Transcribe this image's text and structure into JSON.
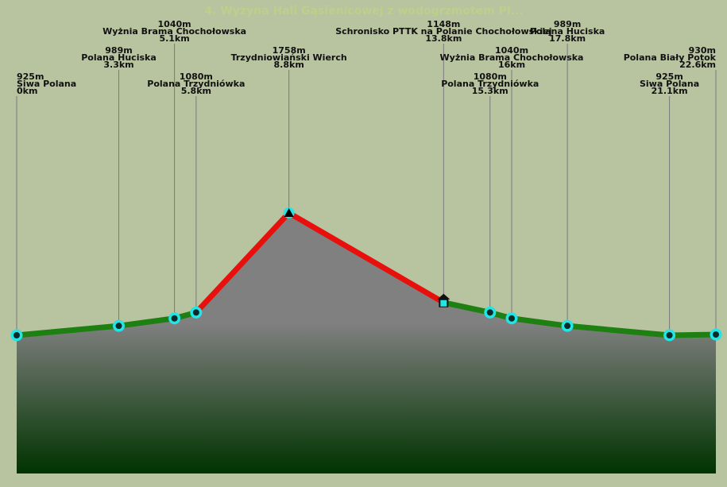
{
  "chart_data": {
    "type": "area",
    "title": "4. Wyżyna Hali Gąsienicowej z wodogrzmotem Pl...",
    "x_unit": "km",
    "y_unit": "m",
    "xlim": [
      0,
      22.6
    ],
    "points": [
      {
        "km": 0,
        "elev": 925,
        "name": "Siwa Polana",
        "km_label": "0km",
        "elev_label": "925m",
        "marker": "circle"
      },
      {
        "km": 3.3,
        "elev": 989,
        "name": "Polana Huciska",
        "km_label": "3.3km",
        "elev_label": "989m",
        "marker": "circle"
      },
      {
        "km": 5.1,
        "elev": 1040,
        "name": "Wyżnia Brama Chochołowska",
        "km_label": "5.1km",
        "elev_label": "1040m",
        "marker": "circle"
      },
      {
        "km": 5.8,
        "elev": 1080,
        "name": "Polana Trzydniówka",
        "km_label": "5.8km",
        "elev_label": "1080m",
        "marker": "circle"
      },
      {
        "km": 8.8,
        "elev": 1758,
        "name": "Trzydniowiański Wierch",
        "km_label": "8.8km",
        "elev_label": "1758m",
        "marker": "peak"
      },
      {
        "km": 13.8,
        "elev": 1148,
        "name": "Schronisko PTTK na Polanie Chochołowskiej",
        "km_label": "13.8km",
        "elev_label": "1148m",
        "marker": "hut"
      },
      {
        "km": 15.3,
        "elev": 1080,
        "name": "Polana Trzydniówka",
        "km_label": "15.3km",
        "elev_label": "1080m",
        "marker": "circle"
      },
      {
        "km": 16,
        "elev": 1040,
        "name": "Wyżnia Brama Chochołowska",
        "km_label": "16km",
        "elev_label": "1040m",
        "marker": "circle"
      },
      {
        "km": 17.8,
        "elev": 989,
        "name": "Polana Huciska",
        "km_label": "17.8km",
        "elev_label": "989m",
        "marker": "circle"
      },
      {
        "km": 21.1,
        "elev": 925,
        "name": "Siwa Polana",
        "km_label": "21.1km",
        "elev_label": "925m",
        "marker": "circle"
      },
      {
        "km": 22.6,
        "elev": 930,
        "name": "Polana Biały Potok",
        "km_label": "22.6km",
        "elev_label": "930m",
        "marker": "circle"
      }
    ],
    "segments": [
      {
        "from": 0,
        "to": 3,
        "color": "#1e7f12"
      },
      {
        "from": 3,
        "to": 5,
        "color": "#e8100c"
      },
      {
        "from": 5,
        "to": 10,
        "color": "#1e7f12"
      }
    ],
    "colors": {
      "background": "#b8c3a0",
      "fill_top": "#808080",
      "fill_bottom": "#003300",
      "marker_ring": "#22e5e5",
      "marker_core": "#0a2a2a",
      "guide": "#7a7a7a"
    }
  }
}
